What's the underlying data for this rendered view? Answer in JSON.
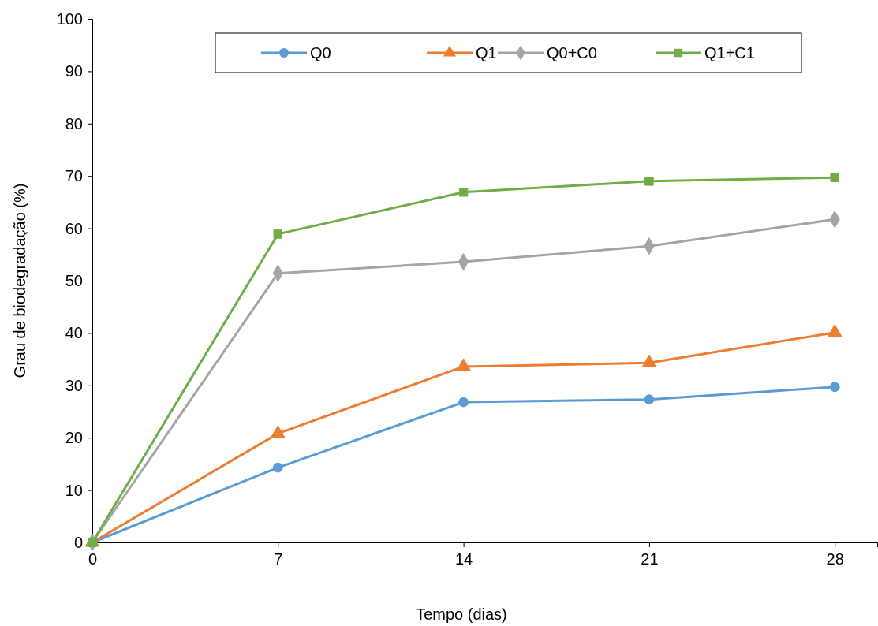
{
  "chart_data": {
    "type": "line",
    "xlabel": "Tempo (dias)",
    "ylabel": "Grau de biodegradação (%)",
    "x": [
      0,
      7,
      14,
      21,
      28
    ],
    "xlim": [
      0,
      29.6
    ],
    "xticks": [
      0,
      7,
      14,
      21,
      28
    ],
    "ylim": [
      0,
      100
    ],
    "yticks": [
      0,
      10,
      20,
      30,
      40,
      50,
      60,
      70,
      80,
      90,
      100
    ],
    "grid": false,
    "legend": "top",
    "line_style": "solid",
    "series": [
      {
        "name": "Q0",
        "color": "#5b9bd5",
        "marker": "circle",
        "values": [
          0,
          14.3,
          26.8,
          27.3,
          29.7
        ]
      },
      {
        "name": "Q1",
        "color": "#ed7d31",
        "marker": "triangle",
        "values": [
          0,
          20.8,
          33.6,
          34.3,
          40.1
        ]
      },
      {
        "name": "Q0+C0",
        "color": "#a5a5a5",
        "marker": "diamond",
        "values": [
          0,
          51.4,
          53.6,
          56.6,
          61.7
        ]
      },
      {
        "name": "Q1+C1",
        "color": "#70ad47",
        "marker": "square",
        "values": [
          0,
          58.9,
          66.9,
          69.0,
          69.7
        ]
      }
    ]
  }
}
